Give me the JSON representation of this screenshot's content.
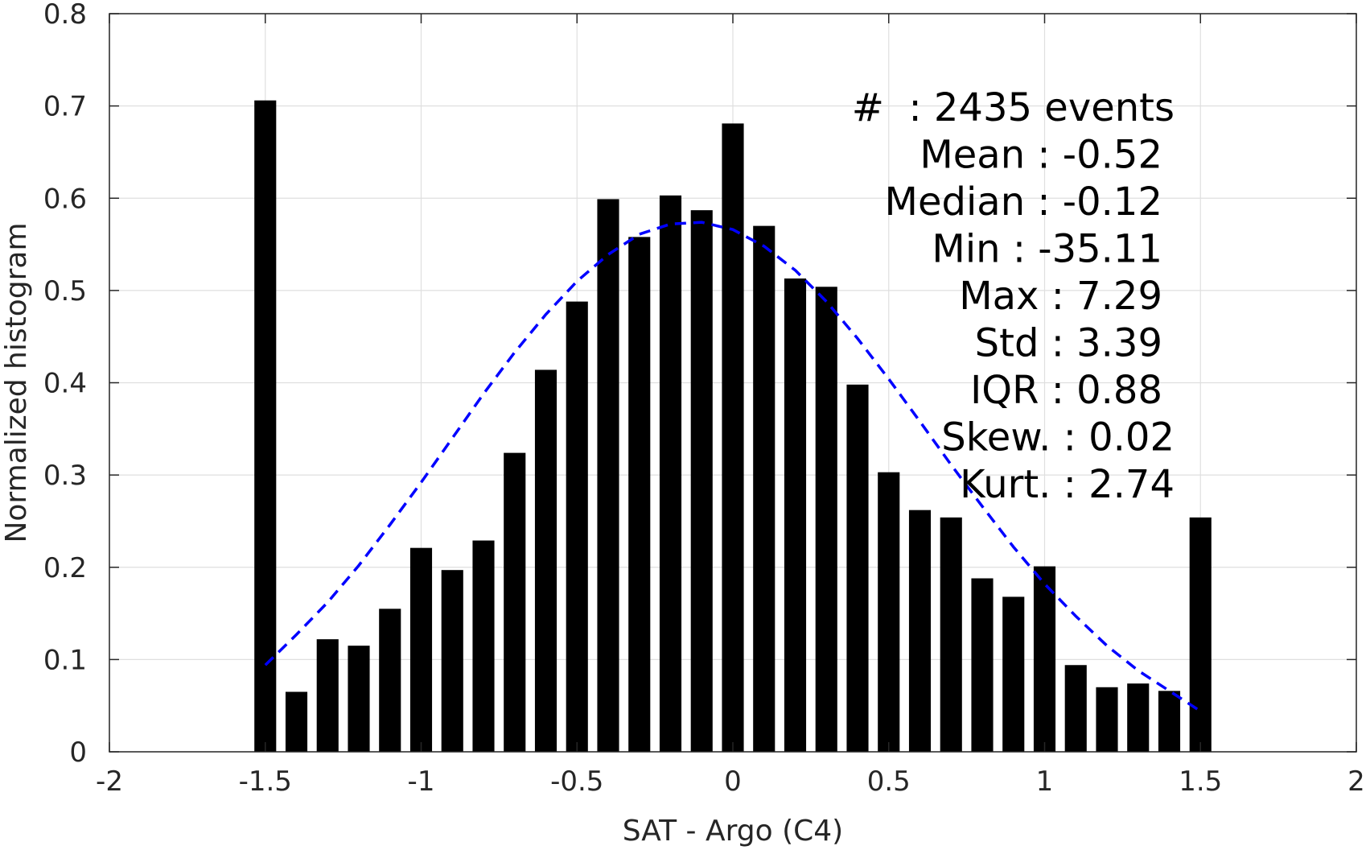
{
  "chart_data": {
    "type": "bar",
    "xlabel": "SAT - Argo (C4)",
    "ylabel": "Normalized histogram",
    "xlim": [
      -2,
      2
    ],
    "ylim": [
      0,
      0.8
    ],
    "grid": true,
    "x_ticks": [
      "-2",
      "-1.5",
      "-1",
      "-0.5",
      "0",
      "0.5",
      "1",
      "1.5",
      "2"
    ],
    "x_tick_values": [
      -2,
      -1.5,
      -1,
      -0.5,
      0,
      0.5,
      1,
      1.5,
      2
    ],
    "y_ticks": [
      "0",
      "0.1",
      "0.2",
      "0.3",
      "0.4",
      "0.5",
      "0.6",
      "0.7",
      "0.8"
    ],
    "y_tick_values": [
      0,
      0.1,
      0.2,
      0.3,
      0.4,
      0.5,
      0.6,
      0.7,
      0.8
    ],
    "bar_width": 0.07,
    "bars": {
      "x": [
        -1.5,
        -1.4,
        -1.3,
        -1.2,
        -1.1,
        -1.0,
        -0.9,
        -0.8,
        -0.7,
        -0.6,
        -0.5,
        -0.4,
        -0.3,
        -0.2,
        -0.1,
        0.0,
        0.1,
        0.2,
        0.3,
        0.4,
        0.5,
        0.6,
        0.7,
        0.8,
        0.9,
        1.0,
        1.1,
        1.2,
        1.3,
        1.4,
        1.5
      ],
      "values": [
        0.706,
        0.065,
        0.122,
        0.115,
        0.155,
        0.221,
        0.197,
        0.229,
        0.324,
        0.414,
        0.488,
        0.599,
        0.558,
        0.603,
        0.587,
        0.681,
        0.57,
        0.513,
        0.504,
        0.398,
        0.303,
        0.262,
        0.254,
        0.188,
        0.168,
        0.201,
        0.094,
        0.07,
        0.074,
        0.066,
        0.254
      ],
      "color": "#000000"
    },
    "fit_curve": {
      "style": "dashed",
      "color": "#0000ff",
      "x": [
        -1.5,
        -1.4,
        -1.3,
        -1.2,
        -1.1,
        -1.0,
        -0.9,
        -0.8,
        -0.7,
        -0.6,
        -0.5,
        -0.4,
        -0.3,
        -0.2,
        -0.1,
        0.0,
        0.1,
        0.2,
        0.3,
        0.4,
        0.5,
        0.6,
        0.7,
        0.8,
        0.9,
        1.0,
        1.1,
        1.2,
        1.3,
        1.4,
        1.5
      ],
      "y": [
        0.094,
        0.127,
        0.162,
        0.202,
        0.246,
        0.292,
        0.34,
        0.388,
        0.433,
        0.474,
        0.51,
        0.539,
        0.561,
        0.572,
        0.574,
        0.566,
        0.548,
        0.522,
        0.488,
        0.448,
        0.404,
        0.358,
        0.311,
        0.266,
        0.222,
        0.182,
        0.147,
        0.115,
        0.088,
        0.066,
        0.044
      ]
    },
    "annotations": [
      "#  : 2435 events",
      "Mean : -0.52",
      "Median : -0.12",
      "Min : -35.11",
      "Max : 7.29",
      "Std : 3.39",
      "IQR : 0.88",
      "Skew. : 0.02",
      "Kurt. : 2.74"
    ]
  }
}
